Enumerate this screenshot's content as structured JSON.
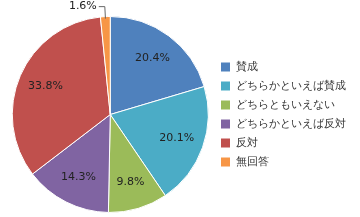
{
  "chart_data": {
    "type": "pie",
    "categories": [
      "賛成",
      "どちらかといえば賛成",
      "どちらともいえない",
      "どちらかといえば反対",
      "反対",
      "無回答"
    ],
    "values": [
      20.4,
      20.1,
      9.8,
      14.3,
      33.8,
      1.6
    ],
    "value_labels": [
      "20.4%",
      "20.1%",
      "9.8%",
      "14.3%",
      "33.8%",
      "1.6%"
    ],
    "colors": [
      "#4f81bd",
      "#4bacc6",
      "#9bbb59",
      "#8064a2",
      "#c0504d",
      "#f79646"
    ],
    "legend": "right",
    "data_labels": true
  }
}
